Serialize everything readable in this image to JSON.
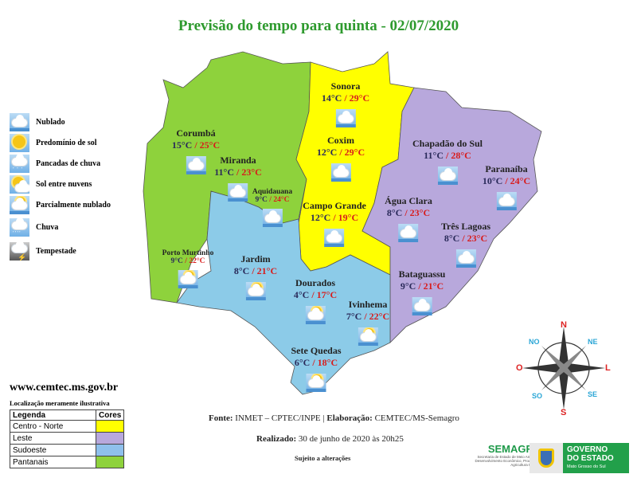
{
  "title": "Previsão do tempo para quinta - 02/07/2020",
  "legend_icons": [
    {
      "label": "Nublado",
      "icon": "cloudy-icon"
    },
    {
      "label": "Predomínio de sol",
      "icon": "sunny-icon"
    },
    {
      "label": "Pancadas de chuva",
      "icon": "showers-icon"
    },
    {
      "label": "Sol entre nuvens",
      "icon": "sun-between-clouds-icon"
    },
    {
      "label": "Parcialmente nublado",
      "icon": "partly-cloudy-icon"
    },
    {
      "label": "Chuva",
      "icon": "rain-icon"
    },
    {
      "label": "Tempestade",
      "icon": "storm-icon"
    }
  ],
  "regions": {
    "header_legend": "Legenda",
    "header_colors": "Cores",
    "items": [
      {
        "name": "Centro - Norte",
        "color": "#ffff00"
      },
      {
        "name": "Leste",
        "color": "#b8a8dc"
      },
      {
        "name": "Sudoeste",
        "color": "#8fc0ec"
      },
      {
        "name": "Pantanais",
        "color": "#8ed23c"
      }
    ]
  },
  "cities": [
    {
      "name": "Corumbá",
      "min": "15°C",
      "max": "25°C",
      "icon": "cloudy-icon"
    },
    {
      "name": "Miranda",
      "min": "11°C",
      "max": "23°C",
      "icon": "cloudy-icon"
    },
    {
      "name": "Aquidauana",
      "min": "9°C",
      "max": "24°C",
      "icon": "cloudy-icon"
    },
    {
      "name": "Porto Murtinho",
      "min": "9°C",
      "max": "22°C",
      "icon": "sun-between-clouds-icon"
    },
    {
      "name": "Sonora",
      "min": "14°C",
      "max": "29°C",
      "icon": "cloudy-icon"
    },
    {
      "name": "Coxim",
      "min": "12°C",
      "max": "29°C",
      "icon": "cloudy-icon"
    },
    {
      "name": "Campo Grande",
      "min": "12°C",
      "max": "19°C",
      "icon": "cloudy-icon"
    },
    {
      "name": "Chapadão do Sul",
      "min": "11°C",
      "max": "28°C",
      "icon": "cloudy-icon"
    },
    {
      "name": "Paranaíba",
      "min": "10°C",
      "max": "24°C",
      "icon": "cloudy-icon"
    },
    {
      "name": "Água Clara",
      "min": "8°C",
      "max": "23°C",
      "icon": "cloudy-icon"
    },
    {
      "name": "Três Lagoas",
      "min": "8°C",
      "max": "23°C",
      "icon": "cloudy-icon"
    },
    {
      "name": "Bataguassu",
      "min": "9°C",
      "max": "21°C",
      "icon": "cloudy-icon"
    },
    {
      "name": "Jardim",
      "min": "8°C",
      "max": "21°C",
      "icon": "sun-between-clouds-icon"
    },
    {
      "name": "Dourados",
      "min": "4°C",
      "max": "17°C",
      "icon": "sun-between-clouds-icon"
    },
    {
      "name": "Ivinhema",
      "min": "7°C",
      "max": "22°C",
      "icon": "sun-between-clouds-icon"
    },
    {
      "name": "Sete Quedas",
      "min": "6°C",
      "max": "18°C",
      "icon": "sun-between-clouds-icon"
    }
  ],
  "compass": {
    "n": "N",
    "s": "S",
    "l": "L",
    "o": "O",
    "ne": "NE",
    "no": "NO",
    "se": "SE",
    "so": "SO"
  },
  "website": "www.cemtec.ms.gov.br",
  "location_note": "Localização meramente ilustrativa",
  "footer": {
    "source_label": "Fonte:",
    "source": "INMET – CPTEC/INPE |",
    "made_label": "Elaboração:",
    "made": "CEMTEC/MS-Semagro",
    "done_label": "Realizado:",
    "done": "30 de junho de 2020 às 20h25",
    "subject": "Sujeito a alterações"
  },
  "logos": {
    "semagro": "SEMAGRO",
    "semagro_sub": "Secretaria de Estado de Meio Ambiente, Desenvolvimento Econômico, Produção e Agricultura Familiar",
    "gov_line1": "GOVERNO",
    "gov_line2": "DO ESTADO",
    "gov_line3": "Mato Grosso do Sul"
  }
}
